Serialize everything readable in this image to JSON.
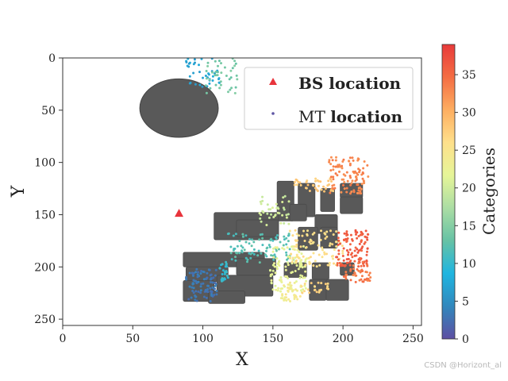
{
  "chart_data": {
    "type": "scatter",
    "title": "",
    "xlabel": "X",
    "ylabel": "Y",
    "xlim": [
      0,
      256
    ],
    "ylim": [
      256,
      0
    ],
    "y_inverted": true,
    "grid": false,
    "x_ticks": [
      0,
      50,
      100,
      150,
      200,
      250
    ],
    "y_ticks": [
      0,
      50,
      100,
      150,
      200,
      250
    ],
    "legend": {
      "placement": "top-right",
      "entries": [
        {
          "marker": "triangle",
          "color": "#e8343c",
          "label_bold": "BS location",
          "label_plain": ""
        },
        {
          "marker": "dot",
          "color": "#5e55a3",
          "label_plain": "MT ",
          "label_bold": "location"
        }
      ]
    },
    "colorbar": {
      "label": "Categories",
      "min": 0,
      "max": 39,
      "ticks": [
        0,
        5,
        10,
        15,
        20,
        25,
        30,
        35
      ],
      "colormap": "Spectral_r",
      "stops": [
        "#5e4fa2",
        "#3288bd",
        "#1fb5e0",
        "#66c2a5",
        "#abdda4",
        "#e6f598",
        "#fee08b",
        "#fdae61",
        "#f46d43",
        "#e83a3a"
      ]
    },
    "bs_location": {
      "x": 83,
      "y": 149,
      "color": "#e8343c"
    },
    "obstacles": {
      "color": "#595959",
      "ellipses": [
        {
          "cx": 83,
          "cy": 48,
          "rx": 28,
          "ry": 28
        }
      ],
      "rects": [
        {
          "x": 153,
          "y": 118,
          "w": 12,
          "h": 38
        },
        {
          "x": 168,
          "y": 120,
          "w": 12,
          "h": 32
        },
        {
          "x": 184,
          "y": 125,
          "w": 10,
          "h": 22
        },
        {
          "x": 198,
          "y": 120,
          "w": 16,
          "h": 14
        },
        {
          "x": 198,
          "y": 133,
          "w": 16,
          "h": 16
        },
        {
          "x": 162,
          "y": 140,
          "w": 12,
          "h": 16
        },
        {
          "x": 180,
          "y": 150,
          "w": 16,
          "h": 18
        },
        {
          "x": 108,
          "y": 148,
          "w": 46,
          "h": 26
        },
        {
          "x": 124,
          "y": 155,
          "w": 30,
          "h": 16
        },
        {
          "x": 168,
          "y": 162,
          "w": 14,
          "h": 22
        },
        {
          "x": 184,
          "y": 162,
          "w": 12,
          "h": 20
        },
        {
          "x": 86,
          "y": 186,
          "w": 58,
          "h": 14
        },
        {
          "x": 88,
          "y": 200,
          "w": 30,
          "h": 14
        },
        {
          "x": 124,
          "y": 192,
          "w": 28,
          "h": 16
        },
        {
          "x": 158,
          "y": 196,
          "w": 16,
          "h": 14
        },
        {
          "x": 178,
          "y": 196,
          "w": 12,
          "h": 16
        },
        {
          "x": 198,
          "y": 196,
          "w": 10,
          "h": 12
        },
        {
          "x": 86,
          "y": 213,
          "w": 22,
          "h": 20
        },
        {
          "x": 110,
          "y": 208,
          "w": 40,
          "h": 20
        },
        {
          "x": 104,
          "y": 223,
          "w": 26,
          "h": 12
        },
        {
          "x": 176,
          "y": 212,
          "w": 12,
          "h": 20
        },
        {
          "x": 188,
          "y": 212,
          "w": 16,
          "h": 20
        }
      ]
    },
    "mt_clusters": [
      {
        "category": 3,
        "x_range": [
          88,
          110
        ],
        "y_range": [
          202,
          233
        ],
        "count": 90
      },
      {
        "category": 7,
        "x_range": [
          88,
          112
        ],
        "y_range": [
          0,
          30
        ],
        "count": 40
      },
      {
        "category": 14,
        "x_range": [
          102,
          125
        ],
        "y_range": [
          0,
          35
        ],
        "count": 40
      },
      {
        "category": 10,
        "x_range": [
          112,
          118
        ],
        "y_range": [
          195,
          215
        ],
        "count": 25
      },
      {
        "category": 12,
        "x_range": [
          118,
          165
        ],
        "y_range": [
          168,
          196
        ],
        "count": 90
      },
      {
        "category": 20,
        "x_range": [
          140,
          162
        ],
        "y_range": [
          132,
          160
        ],
        "count": 40
      },
      {
        "category": 22,
        "x_range": [
          148,
          175
        ],
        "y_range": [
          180,
          225
        ],
        "count": 110
      },
      {
        "category": 24,
        "x_range": [
          155,
          170
        ],
        "y_range": [
          215,
          233
        ],
        "count": 35
      },
      {
        "category": 26,
        "x_range": [
          162,
          200
        ],
        "y_range": [
          165,
          200
        ],
        "count": 90
      },
      {
        "category": 27,
        "x_range": [
          170,
          190
        ],
        "y_range": [
          215,
          225
        ],
        "count": 25
      },
      {
        "category": 28,
        "x_range": [
          165,
          195
        ],
        "y_range": [
          115,
          128
        ],
        "count": 40
      },
      {
        "category": 33,
        "x_range": [
          190,
          218
        ],
        "y_range": [
          95,
          130
        ],
        "count": 100
      },
      {
        "category": 36,
        "x_range": [
          195,
          218
        ],
        "y_range": [
          165,
          200
        ],
        "count": 110
      },
      {
        "category": 34,
        "x_range": [
          200,
          220
        ],
        "y_range": [
          195,
          215
        ],
        "count": 45
      }
    ]
  },
  "watermark": "CSDN @Horizont_al"
}
